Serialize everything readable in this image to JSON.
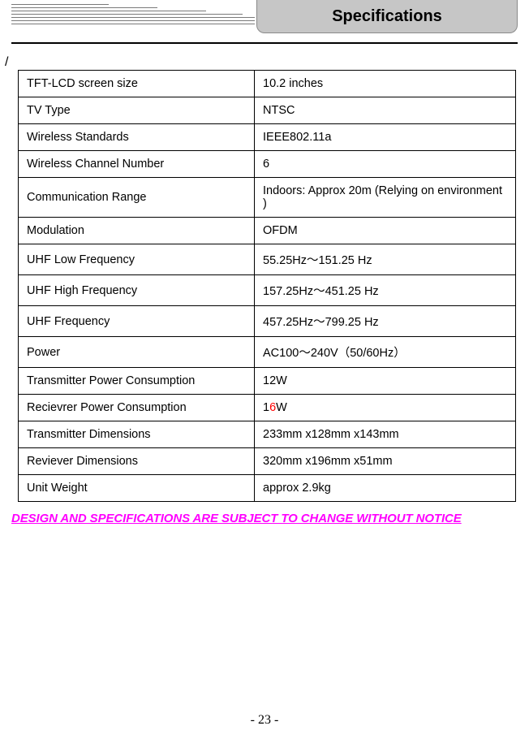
{
  "header": {
    "title": "Specifications"
  },
  "slash": "/",
  "table": {
    "rows": [
      {
        "label": "TFT-LCD screen size",
        "value": "10.2 inches",
        "tall": false
      },
      {
        "label": "TV Type",
        "value": "NTSC",
        "tall": false
      },
      {
        "label": "Wireless Standards",
        "value": "IEEE802.11a",
        "tall": false
      },
      {
        "label": "Wireless Channel Number",
        "value": "6",
        "tall": false
      },
      {
        "label": "Communication Range",
        "value": "Indoors: Approx 20m (Relying on environment )",
        "tall": false
      },
      {
        "label": "Modulation",
        "value": "OFDM",
        "tall": false
      },
      {
        "label": "UHF Low Frequency",
        "value": "55.25Hz～151.25 Hz",
        "tall": false
      },
      {
        "label": "UHF High Frequency",
        "value": "157.25Hz～451.25 Hz",
        "tall": false
      },
      {
        "label": "UHF Frequency",
        "value": "457.25Hz～799.25 Hz",
        "tall": false
      },
      {
        "label": "Power",
        "value": "AC100～240V（50/60Hz）",
        "tall": false
      },
      {
        "label": "Transmitter Power Consumption",
        "value": "12W",
        "tall": true
      },
      {
        "label": "Recievrer Power Consumption",
        "value_parts": {
          "prefix": "1",
          "highlight": "6",
          "suffix": "W"
        },
        "tall": true
      },
      {
        "label": "Transmitter Dimensions",
        "value": "233mm x128mm x143mm",
        "tall": false
      },
      {
        "label": "Reviever Dimensions",
        "value": "320mm x196mm x51mm",
        "tall": false
      },
      {
        "label": "Unit Weight",
        "value": "approx 2.9kg",
        "tall": false
      }
    ]
  },
  "notice": "DESIGN AND SPECIFICATIONS ARE SUBJECT TO CHANGE WITHOUT NOTICE",
  "pageNumber": "- 23 -",
  "colors": {
    "highlight": "#ff0000",
    "notice": "#ff00ff",
    "tab_bg": "#c6c6c6",
    "tab_border": "#8a8a8a",
    "line": "#7a7a7a"
  }
}
